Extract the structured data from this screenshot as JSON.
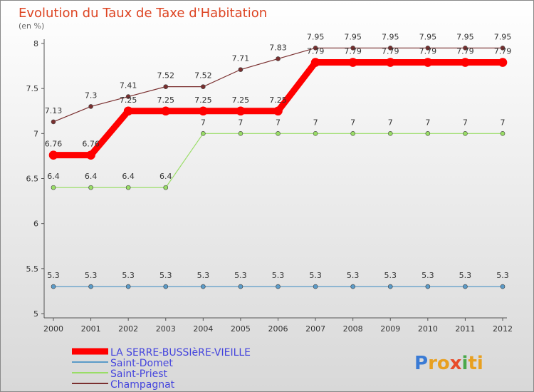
{
  "chart_data": {
    "type": "line",
    "title": "Evolution du Taux de Taxe d'Habitation",
    "ylabel": "(en %)",
    "xlabel": "",
    "categories": [
      "2000",
      "2001",
      "2002",
      "2003",
      "2004",
      "2005",
      "2006",
      "2007",
      "2008",
      "2009",
      "2010",
      "2011",
      "2012"
    ],
    "ylim": [
      5,
      8
    ],
    "yticks": [
      "5",
      "5.5",
      "6",
      "6.5",
      "7",
      "7.5",
      "8"
    ],
    "grid": false,
    "legend": "bottom-left",
    "series": [
      {
        "name": "LA SERRE-BUSSIèRE-VIEILLE",
        "color": "#ff0000",
        "values": [
          6.76,
          6.76,
          7.25,
          7.25,
          7.25,
          7.25,
          7.25,
          7.79,
          7.79,
          7.79,
          7.79,
          7.79,
          7.79
        ],
        "labels": [
          "6.76",
          "6.76",
          "7.25",
          "7.25",
          "7.25",
          "7.25",
          "7.25",
          "7.79",
          "7.79",
          "7.79",
          "7.79",
          "7.79",
          "7.79"
        ]
      },
      {
        "name": "Saint-Domet",
        "color": "#5b9bc8",
        "values": [
          5.3,
          5.3,
          5.3,
          5.3,
          5.3,
          5.3,
          5.3,
          5.3,
          5.3,
          5.3,
          5.3,
          5.3,
          5.3
        ],
        "labels": [
          "5.3",
          "5.3",
          "5.3",
          "5.3",
          "5.3",
          "5.3",
          "5.3",
          "5.3",
          "5.3",
          "5.3",
          "5.3",
          "5.3",
          "5.3"
        ]
      },
      {
        "name": "Saint-Priest",
        "color": "#99dd66",
        "values": [
          6.4,
          6.4,
          6.4,
          6.4,
          7,
          7,
          7,
          7,
          7,
          7,
          7,
          7,
          7
        ],
        "labels": [
          "6.4",
          "6.4",
          "6.4",
          "6.4",
          "7",
          "7",
          "7",
          "7",
          "7",
          "7",
          "7",
          "7",
          "7"
        ]
      },
      {
        "name": "Champagnat",
        "color": "#7a2f2f",
        "values": [
          7.13,
          7.3,
          7.41,
          7.52,
          7.52,
          7.71,
          7.83,
          7.95,
          7.95,
          7.95,
          7.95,
          7.95,
          7.95
        ],
        "labels": [
          "7.13",
          "7.3",
          "7.41",
          "7.52",
          "7.52",
          "7.71",
          "7.83",
          "7.95",
          "7.95",
          "7.95",
          "7.95",
          "7.95",
          "7.95"
        ]
      }
    ]
  },
  "logo": {
    "text": "Proxiti"
  },
  "colors": {
    "title": "#dd4422",
    "subtitle": "#666666",
    "legend_text": "#4444dd",
    "axis": "#555555"
  }
}
